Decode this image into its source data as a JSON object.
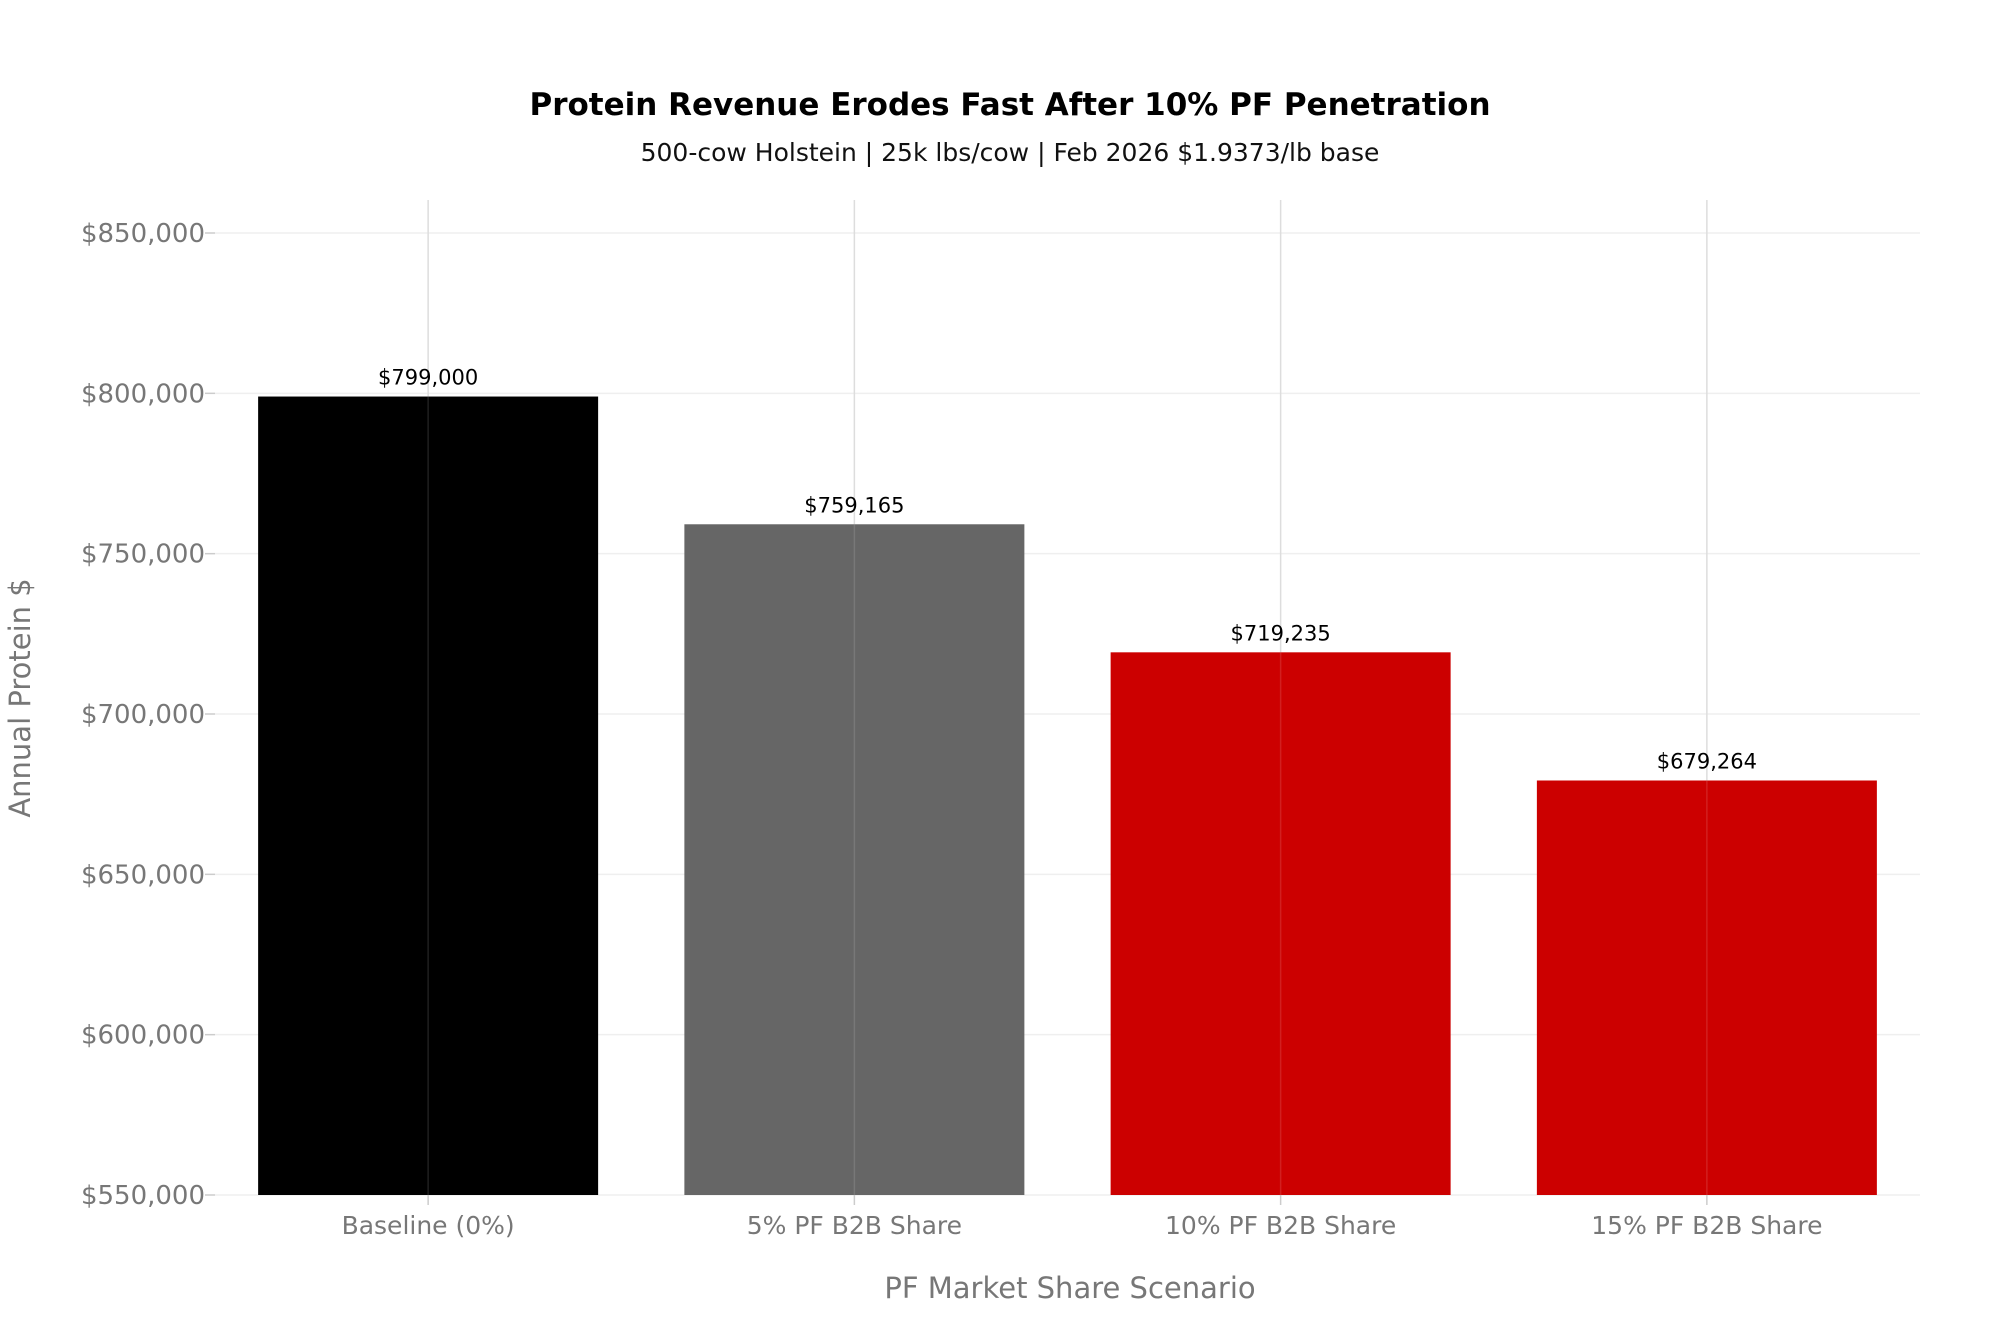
{
  "chart_data": {
    "type": "bar",
    "title": "Protein Revenue Erodes Fast After 10% PF Penetration",
    "subtitle": "500-cow Holstein | 25k lbs/cow | Feb 2026 $1.9373/lb base",
    "xlabel": "PF Market Share Scenario",
    "ylabel": "Annual Protein $",
    "categories": [
      "Baseline (0%)",
      "5% PF B2B Share",
      "10% PF B2B Share",
      "15% PF B2B Share"
    ],
    "values": [
      799000,
      759165,
      719235,
      679264
    ],
    "data_labels": [
      "$799,000",
      "$759,165",
      "$719,235",
      "$679,264"
    ],
    "bar_colors": [
      "#000000",
      "#666666",
      "#cc0000",
      "#cc0000"
    ],
    "ylim": [
      550000,
      850000
    ],
    "yticks": [
      550000,
      600000,
      650000,
      700000,
      750000,
      800000,
      850000
    ],
    "ytick_labels": [
      "$550,000",
      "$600,000",
      "$650,000",
      "$700,000",
      "$750,000",
      "$800,000",
      "$850,000"
    ],
    "grid": true,
    "legend": "none"
  }
}
